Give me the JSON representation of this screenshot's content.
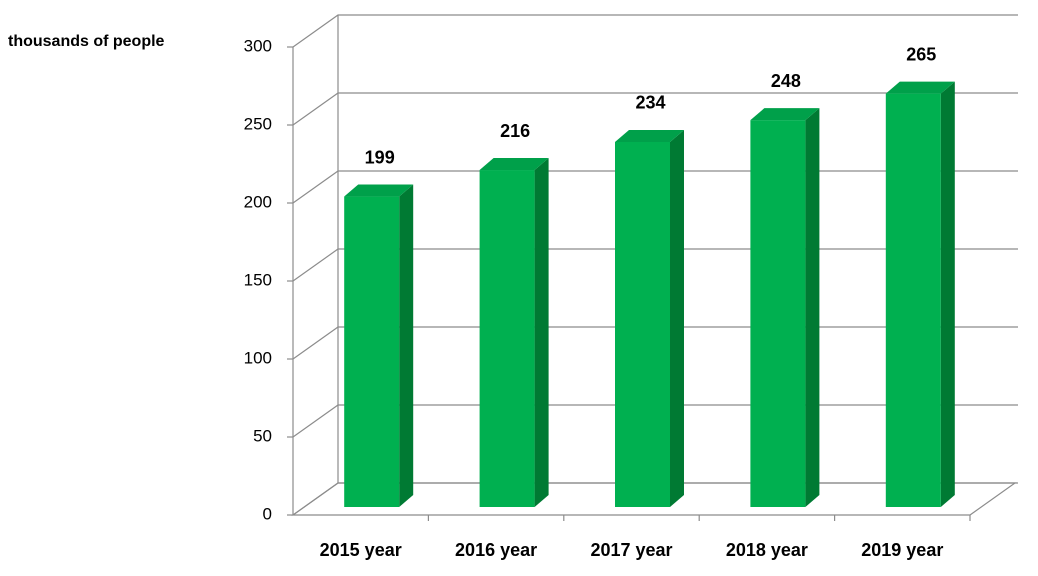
{
  "chart_data": {
    "type": "bar3d",
    "y_axis_label": "thousands of people",
    "categories": [
      "2015 year",
      "2016 year",
      "2017 year",
      "2018 year",
      "2019 year"
    ],
    "values": [
      199,
      216,
      234,
      248,
      265
    ],
    "color": "#00b050",
    "ylim": [
      0,
      300
    ],
    "yticks": [
      0,
      50,
      100,
      150,
      200,
      250,
      300
    ],
    "grid": true
  }
}
